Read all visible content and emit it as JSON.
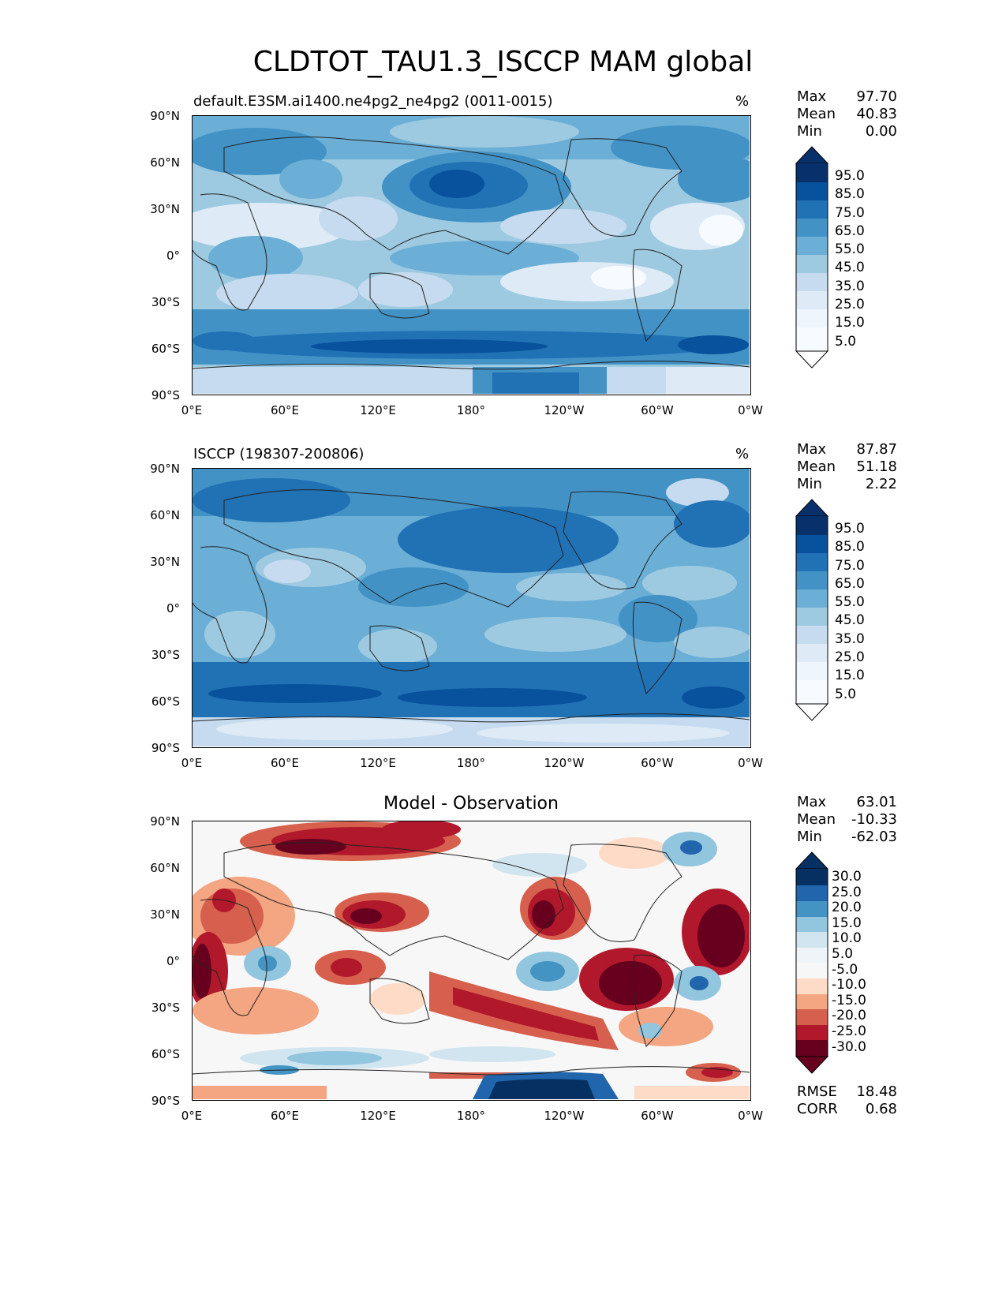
{
  "title": "CLDTOT_TAU1.3_ISCCP MAM global",
  "xtick_labels": [
    "0°E",
    "60°E",
    "120°E",
    "180°",
    "120°W",
    "60°W",
    "0°W"
  ],
  "ytick_labels": [
    "90°N",
    "60°N",
    "30°N",
    "0°",
    "30°S",
    "60°S",
    "90°S"
  ],
  "panels": [
    {
      "subtitle": "default.E3SM.ai1400.ne4pg2_ne4pg2 (0011-0015)",
      "unit": "%",
      "stats": [
        {
          "label": "Max",
          "value": "97.70"
        },
        {
          "label": "Mean",
          "value": "40.83"
        },
        {
          "label": "Min",
          "value": "0.00"
        }
      ],
      "colorbar_labels": [
        "95.0",
        "85.0",
        "75.0",
        "65.0",
        "55.0",
        "45.0",
        "35.0",
        "25.0",
        "15.0",
        "5.0"
      ]
    },
    {
      "subtitle": "ISCCP (198307-200806)",
      "unit": "%",
      "stats": [
        {
          "label": "Max",
          "value": "87.87"
        },
        {
          "label": "Mean",
          "value": "51.18"
        },
        {
          "label": "Min",
          "value": "2.22"
        }
      ],
      "colorbar_labels": [
        "95.0",
        "85.0",
        "75.0",
        "65.0",
        "55.0",
        "45.0",
        "35.0",
        "25.0",
        "15.0",
        "5.0"
      ]
    },
    {
      "center_title": "Model - Observation",
      "stats": [
        {
          "label": "Max",
          "value": "63.01"
        },
        {
          "label": "Mean",
          "value": "-10.33"
        },
        {
          "label": "Min",
          "value": "-62.03"
        }
      ],
      "colorbar_labels": [
        "30.0",
        "25.0",
        "20.0",
        "15.0",
        "10.0",
        "5.0",
        "-5.0",
        "-10.0",
        "-15.0",
        "-20.0",
        "-25.0",
        "-30.0"
      ],
      "metrics": [
        {
          "label": "RMSE",
          "value": "18.48"
        },
        {
          "label": "CORR",
          "value": "0.68"
        }
      ]
    }
  ],
  "colors": {
    "blues": [
      "#f7fbff",
      "#deebf7",
      "#c6dbef",
      "#9ecae1",
      "#6baed6",
      "#4292c6",
      "#2171b5",
      "#08519c",
      "#08306b"
    ],
    "rdbu": [
      "#67001f",
      "#b2182b",
      "#d6604d",
      "#f4a582",
      "#fddbc7",
      "#f7f7f7",
      "#d1e5f0",
      "#92c5de",
      "#4393c3",
      "#2166ac",
      "#053061"
    ]
  }
}
